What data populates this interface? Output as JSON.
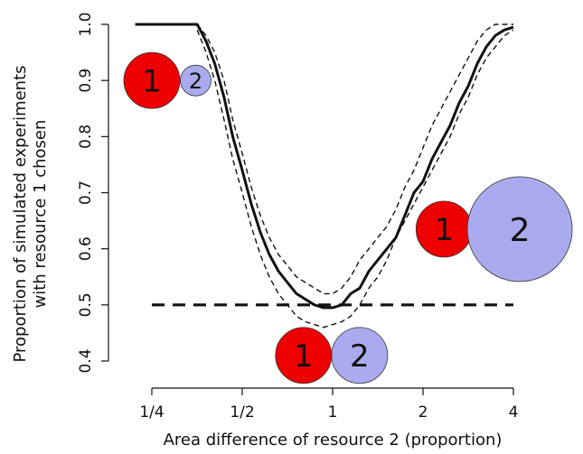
{
  "chart_data": {
    "type": "line",
    "title": "",
    "xlabel": "Area difference of resource 2 (proportion)",
    "ylabel_lines": [
      "Proportion of simulated experiments",
      "with resource 1 chosen"
    ],
    "x_scale": "log2",
    "xlim": [
      0.25,
      4
    ],
    "ylim": [
      0.4,
      1.0
    ],
    "x_ticks": [
      {
        "value": 0.25,
        "label": "1/4"
      },
      {
        "value": 0.5,
        "label": "1/2"
      },
      {
        "value": 1,
        "label": "1"
      },
      {
        "value": 2,
        "label": "2"
      },
      {
        "value": 4,
        "label": "4"
      }
    ],
    "y_ticks": [
      {
        "value": 0.4,
        "label": "0.4"
      },
      {
        "value": 0.5,
        "label": "0.5"
      },
      {
        "value": 0.6,
        "label": "0.6"
      },
      {
        "value": 0.7,
        "label": "0.7"
      },
      {
        "value": 0.8,
        "label": "0.8"
      },
      {
        "value": 0.9,
        "label": "0.9"
      },
      {
        "value": 1.0,
        "label": "1.0"
      }
    ],
    "grid": false,
    "series": [
      {
        "style": "solid",
        "x": [
          0.22,
          0.25,
          0.3,
          0.354,
          0.379,
          0.405,
          0.435,
          0.465,
          0.5,
          0.536,
          0.574,
          0.615,
          0.66,
          0.707,
          0.758,
          0.812,
          0.87,
          0.933,
          1.0,
          1.072,
          1.149,
          1.231,
          1.32,
          1.414,
          1.516,
          1.625,
          1.741,
          1.866,
          2.0,
          2.144,
          2.297,
          2.462,
          2.639,
          2.828,
          3.031,
          3.249,
          3.482,
          3.732,
          4.0
        ],
        "y": [
          1.0,
          1.0,
          1.0,
          1.0,
          0.97,
          0.93,
          0.87,
          0.8,
          0.74,
          0.68,
          0.63,
          0.59,
          0.56,
          0.54,
          0.52,
          0.51,
          0.5,
          0.495,
          0.495,
          0.5,
          0.52,
          0.53,
          0.56,
          0.58,
          0.6,
          0.62,
          0.66,
          0.7,
          0.72,
          0.76,
          0.79,
          0.82,
          0.86,
          0.89,
          0.93,
          0.96,
          0.98,
          0.99,
          0.995
        ]
      },
      {
        "style": "dashed",
        "x": [
          0.354,
          0.379,
          0.405,
          0.435,
          0.465,
          0.5,
          0.536,
          0.574,
          0.615,
          0.66,
          0.707,
          0.758,
          0.812,
          0.87,
          0.933,
          1.0,
          1.072,
          1.149,
          1.231,
          1.32,
          1.414,
          1.516,
          1.625,
          1.741,
          1.866,
          2.0,
          2.144,
          2.297,
          2.462,
          2.639,
          2.828,
          3.031,
          3.249,
          3.482,
          3.732,
          4.0
        ],
        "y": [
          1.0,
          0.98,
          0.95,
          0.9,
          0.83,
          0.77,
          0.71,
          0.66,
          0.62,
          0.59,
          0.57,
          0.55,
          0.54,
          0.53,
          0.52,
          0.52,
          0.53,
          0.55,
          0.58,
          0.6,
          0.62,
          0.64,
          0.67,
          0.71,
          0.74,
          0.78,
          0.82,
          0.85,
          0.88,
          0.91,
          0.94,
          0.97,
          0.99,
          1.0,
          1.0,
          1.0
        ]
      },
      {
        "style": "dashed",
        "x": [
          0.354,
          0.379,
          0.405,
          0.435,
          0.465,
          0.5,
          0.536,
          0.574,
          0.615,
          0.66,
          0.707,
          0.758,
          0.812,
          0.87,
          0.933,
          1.0,
          1.072,
          1.149,
          1.231,
          1.32,
          1.414,
          1.516,
          1.625,
          1.741,
          1.866,
          2.0,
          2.144,
          2.297,
          2.462,
          2.639,
          2.828,
          3.031,
          3.249,
          3.482,
          3.732,
          4.0
        ],
        "y": [
          0.99,
          0.95,
          0.9,
          0.83,
          0.76,
          0.7,
          0.64,
          0.59,
          0.55,
          0.52,
          0.5,
          0.48,
          0.47,
          0.465,
          0.46,
          0.465,
          0.47,
          0.48,
          0.5,
          0.53,
          0.55,
          0.58,
          0.62,
          0.65,
          0.68,
          0.71,
          0.74,
          0.77,
          0.8,
          0.84,
          0.87,
          0.91,
          0.94,
          0.96,
          0.98,
          0.99
        ]
      }
    ],
    "reference_line": {
      "style": "dashed",
      "y": 0.5,
      "x_from": 0.25,
      "x_to": 4
    },
    "annotations": [
      {
        "label": "1",
        "color": "#ee0000",
        "x": 0.25,
        "y": 0.9,
        "size": "medium"
      },
      {
        "label": "2",
        "color": "#aaaaee",
        "x": 0.35,
        "y": 0.9,
        "size": "small"
      },
      {
        "label": "1",
        "color": "#ee0000",
        "x": 0.8,
        "y": 0.41,
        "size": "medium"
      },
      {
        "label": "2",
        "color": "#aaaaee",
        "x": 1.23,
        "y": 0.41,
        "size": "medium"
      },
      {
        "label": "1",
        "color": "#ee0000",
        "x": 2.35,
        "y": 0.635,
        "size": "medium"
      },
      {
        "label": "2",
        "color": "#aaaaee",
        "x": 4.2,
        "y": 0.635,
        "size": "large"
      }
    ]
  }
}
